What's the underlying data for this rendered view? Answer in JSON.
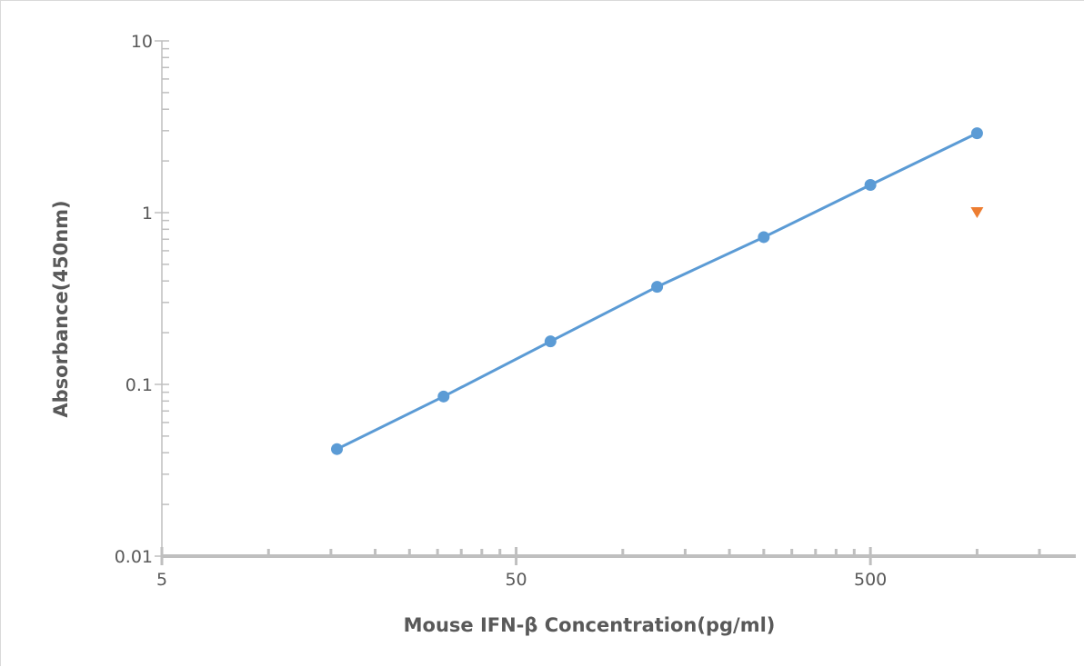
{
  "chart_data": {
    "type": "scatter",
    "xlabel": "Mouse IFN-β Concentration(pg/ml)",
    "ylabel": "Absorbance(450nm)",
    "x_scale": "log",
    "y_scale": "log",
    "xlim": [
      5,
      1900
    ],
    "ylim": [
      0.01,
      10
    ],
    "x_ticks": [
      {
        "value": 5,
        "label": "5"
      },
      {
        "value": 50,
        "label": "50"
      },
      {
        "value": 500,
        "label": "500"
      }
    ],
    "y_ticks": [
      {
        "value": 0.01,
        "label": "0.01"
      },
      {
        "value": 0.1,
        "label": "0.1"
      },
      {
        "value": 1,
        "label": "1"
      },
      {
        "value": 10,
        "label": "10"
      }
    ],
    "grid": false,
    "series": [
      {
        "marker": "circle",
        "line": true,
        "color": "#5b9bd5",
        "x": [
          15.6,
          31.2,
          62.5,
          125,
          250,
          500,
          1000
        ],
        "y": [
          0.042,
          0.085,
          0.178,
          0.37,
          0.72,
          1.45,
          2.9
        ]
      },
      {
        "marker": "triangle-down",
        "line": false,
        "color": "#ed7d31",
        "x": [
          1000
        ],
        "y": [
          1.0
        ]
      }
    ]
  }
}
